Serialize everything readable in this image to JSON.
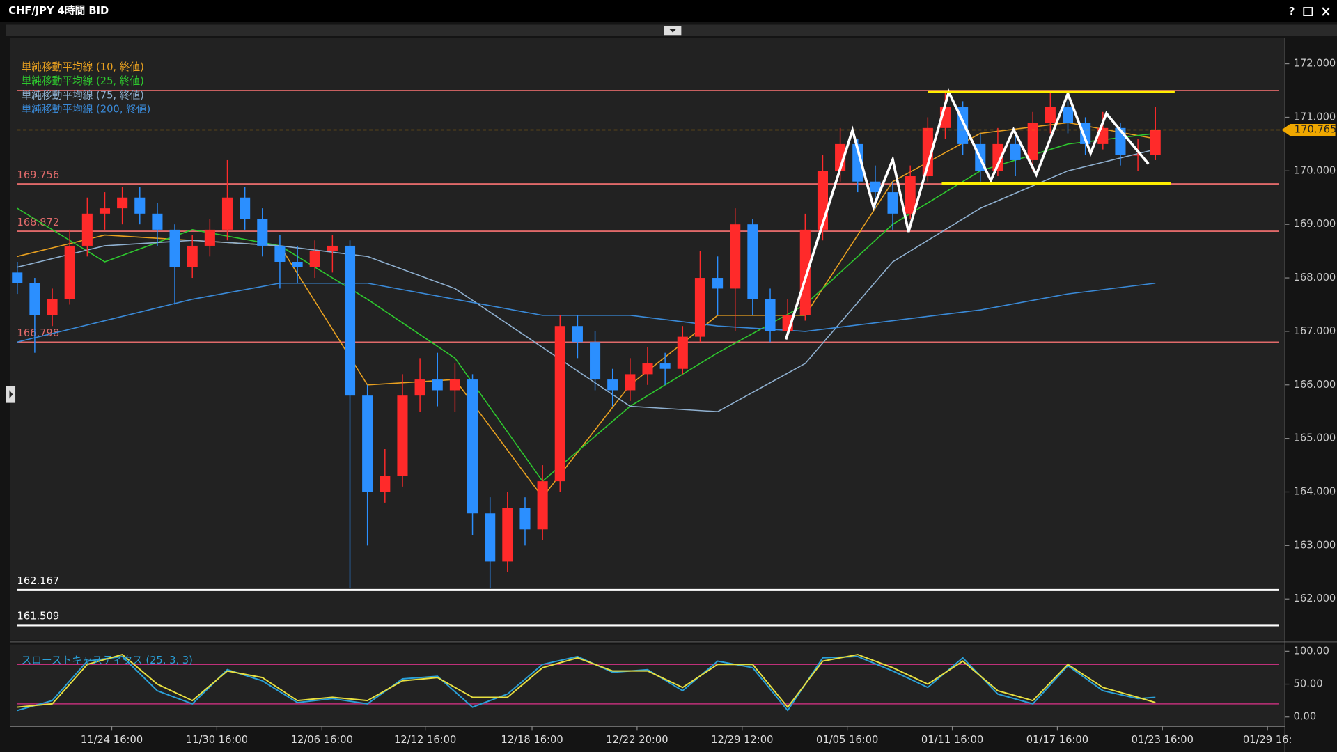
{
  "window": {
    "title": "CHF/JPY 4時間 BID",
    "help": "?"
  },
  "chart_data": [
    {
      "type": "candlestick",
      "ylim": [
        161.23,
        172.49
      ],
      "yticks": [
        {
          "value": 162,
          "label": "162.000"
        },
        {
          "value": 163,
          "label": "163.000"
        },
        {
          "value": 164,
          "label": "164.000"
        },
        {
          "value": 165,
          "label": "165.000"
        },
        {
          "value": 166,
          "label": "166.000"
        },
        {
          "value": 167,
          "label": "167.000"
        },
        {
          "value": 168,
          "label": "168.000"
        },
        {
          "value": 169,
          "label": "169.000"
        },
        {
          "value": 170,
          "label": "170.000"
        },
        {
          "value": 171,
          "label": "171.000"
        },
        {
          "value": 172,
          "label": "172.000"
        }
      ],
      "xlim": [
        -0.4,
        72.4
      ],
      "xticks": [
        {
          "value": 5.4,
          "label": "11/24 16:00"
        },
        {
          "value": 11.4,
          "label": "11/30 16:00"
        },
        {
          "value": 17.4,
          "label": "12/06 16:00"
        },
        {
          "value": 23.3,
          "label": "12/12 16:00"
        },
        {
          "value": 29.4,
          "label": "12/18 16:00"
        },
        {
          "value": 35.4,
          "label": "12/22 20:00"
        },
        {
          "value": 41.4,
          "label": "12/29 12:00"
        },
        {
          "value": 47.4,
          "label": "01/05 16:00"
        },
        {
          "value": 53.4,
          "label": "01/11 16:00"
        },
        {
          "value": 59.4,
          "label": "01/17 16:00"
        },
        {
          "value": 65.4,
          "label": "01/23 16:00"
        },
        {
          "value": 71.4,
          "label": "01/29 16:"
        }
      ],
      "up_color": "#ff2a2a",
      "down_color": "#2b8fff",
      "candles": [
        [
          168.1,
          168.3,
          167.7,
          167.9
        ],
        [
          167.9,
          168.0,
          166.6,
          167.3
        ],
        [
          167.3,
          167.8,
          167.1,
          167.6
        ],
        [
          167.6,
          168.9,
          167.5,
          168.6
        ],
        [
          168.6,
          169.5,
          168.4,
          169.2
        ],
        [
          169.2,
          169.6,
          168.9,
          169.3
        ],
        [
          169.3,
          169.7,
          169.0,
          169.5
        ],
        [
          169.5,
          169.7,
          169.0,
          169.2
        ],
        [
          169.2,
          169.4,
          168.6,
          168.9
        ],
        [
          168.9,
          169.0,
          167.5,
          168.2
        ],
        [
          168.2,
          168.8,
          168.0,
          168.6
        ],
        [
          168.6,
          169.1,
          168.4,
          168.9
        ],
        [
          168.9,
          170.2,
          168.7,
          169.5
        ],
        [
          169.5,
          169.7,
          168.9,
          169.1
        ],
        [
          169.1,
          169.3,
          168.4,
          168.6
        ],
        [
          168.6,
          168.8,
          167.8,
          168.3
        ],
        [
          168.3,
          168.6,
          167.9,
          168.2
        ],
        [
          168.2,
          168.7,
          168.0,
          168.5
        ],
        [
          168.5,
          168.8,
          168.1,
          168.6
        ],
        [
          168.6,
          168.7,
          162.2,
          165.8
        ],
        [
          165.8,
          166.0,
          163.0,
          164.0
        ],
        [
          164.0,
          164.8,
          163.8,
          164.3
        ],
        [
          164.3,
          166.2,
          164.1,
          165.8
        ],
        [
          165.8,
          166.5,
          165.5,
          166.1
        ],
        [
          166.1,
          166.6,
          165.6,
          165.9
        ],
        [
          165.9,
          166.4,
          165.5,
          166.1
        ],
        [
          166.1,
          166.2,
          163.2,
          163.6
        ],
        [
          163.6,
          163.9,
          162.2,
          162.7
        ],
        [
          162.7,
          164.0,
          162.5,
          163.7
        ],
        [
          163.7,
          163.9,
          163.0,
          163.3
        ],
        [
          163.3,
          164.5,
          163.1,
          164.2
        ],
        [
          164.2,
          167.3,
          164.0,
          167.1
        ],
        [
          167.1,
          167.3,
          166.5,
          166.8
        ],
        [
          166.8,
          167.0,
          165.9,
          166.1
        ],
        [
          166.1,
          166.3,
          165.6,
          165.9
        ],
        [
          165.9,
          166.5,
          165.7,
          166.2
        ],
        [
          166.2,
          166.7,
          166.0,
          166.4
        ],
        [
          166.4,
          166.6,
          166.0,
          166.3
        ],
        [
          166.3,
          167.1,
          166.2,
          166.9
        ],
        [
          166.9,
          168.5,
          166.8,
          168.0
        ],
        [
          168.0,
          168.4,
          167.3,
          167.8
        ],
        [
          167.8,
          169.3,
          167.0,
          169.0
        ],
        [
          169.0,
          169.1,
          167.3,
          167.6
        ],
        [
          167.6,
          167.8,
          166.8,
          167.0
        ],
        [
          167.0,
          167.6,
          166.9,
          167.3
        ],
        [
          167.3,
          169.2,
          167.2,
          168.9
        ],
        [
          168.9,
          170.3,
          168.7,
          170.0
        ],
        [
          170.0,
          170.8,
          169.8,
          170.5
        ],
        [
          170.5,
          170.6,
          169.6,
          169.8
        ],
        [
          169.8,
          170.1,
          169.3,
          169.6
        ],
        [
          169.6,
          169.8,
          168.9,
          169.2
        ],
        [
          169.2,
          170.1,
          169.1,
          169.9
        ],
        [
          169.9,
          171.0,
          169.8,
          170.8
        ],
        [
          170.8,
          171.5,
          170.6,
          171.2
        ],
        [
          171.2,
          171.3,
          170.3,
          170.5
        ],
        [
          170.5,
          170.7,
          169.8,
          170.0
        ],
        [
          170.0,
          170.8,
          169.9,
          170.5
        ],
        [
          170.5,
          170.7,
          169.9,
          170.2
        ],
        [
          170.2,
          171.1,
          170.0,
          170.9
        ],
        [
          170.9,
          171.5,
          170.7,
          171.2
        ],
        [
          171.2,
          171.3,
          170.7,
          170.9
        ],
        [
          170.9,
          171.0,
          170.3,
          170.5
        ],
        [
          170.5,
          171.1,
          170.4,
          170.8
        ],
        [
          170.8,
          170.9,
          170.1,
          170.3
        ],
        [
          170.3,
          170.6,
          170.0,
          170.3
        ],
        [
          170.3,
          171.2,
          170.2,
          170.77
        ]
      ],
      "ma_x": [
        0,
        5,
        10,
        15,
        20,
        25,
        30,
        35,
        40,
        45,
        50,
        55,
        60,
        65
      ],
      "series": [
        {
          "name": "単純移動平均線 (10, 終値)",
          "color": "#e8a020",
          "values": [
            168.4,
            168.8,
            168.7,
            168.6,
            166.0,
            166.1,
            163.9,
            166.0,
            167.3,
            167.3,
            169.8,
            170.7,
            170.9,
            170.6
          ]
        },
        {
          "name": "単純移動平均線 (25, 終値)",
          "color": "#2ec82e",
          "values": [
            169.3,
            168.3,
            168.9,
            168.6,
            167.6,
            166.5,
            164.2,
            165.6,
            166.6,
            167.5,
            169.0,
            170.0,
            170.5,
            170.7
          ]
        },
        {
          "name": "単純移動平均線 (75, 終値)",
          "color": "#8fb0d0",
          "values": [
            168.2,
            168.6,
            168.7,
            168.6,
            168.4,
            167.8,
            166.7,
            165.6,
            165.5,
            166.4,
            168.3,
            169.3,
            170.0,
            170.4
          ]
        },
        {
          "name": "単純移動平均線 (200, 終値)",
          "color": "#3a8ad8",
          "values": [
            166.8,
            167.2,
            167.6,
            167.9,
            167.9,
            167.6,
            167.3,
            167.3,
            167.1,
            167.0,
            167.2,
            167.4,
            167.7,
            167.9
          ]
        }
      ],
      "levels": [
        {
          "value": 171.5,
          "color": "#e06a6a",
          "labeled": false
        },
        {
          "value": 169.756,
          "color": "#e06a6a",
          "labeled": true
        },
        {
          "value": 168.872,
          "color": "#e06a6a",
          "labeled": true
        },
        {
          "value": 166.798,
          "color": "#e06a6a",
          "labeled": true
        },
        {
          "value": 162.167,
          "color": "#ffffff",
          "labeled": true
        },
        {
          "value": 161.509,
          "color": "#ffffff",
          "labeled": true
        }
      ],
      "last": 170.765,
      "last_color": "#f0a800",
      "zigzag": {
        "color": "#ffffff",
        "x": [
          43.9,
          47.7,
          48.9,
          50.0,
          50.9,
          53.2,
          55.6,
          56.9,
          58.2,
          60.0,
          61.3,
          62.2,
          64.6
        ],
        "y": [
          166.85,
          170.76,
          169.32,
          170.21,
          168.86,
          171.47,
          169.82,
          170.77,
          169.93,
          171.44,
          170.33,
          171.07,
          170.13
        ]
      },
      "range_lines": {
        "color": "#ffee00",
        "lines": [
          {
            "x": [
              52.0,
              66.1
            ],
            "y": [
              171.48,
              171.48
            ]
          },
          {
            "x": [
              52.8,
              65.9
            ],
            "y": [
              169.76,
              169.76
            ]
          }
        ]
      }
    },
    {
      "type": "line",
      "title": "スローストキャスティクス (25, 3, 3)",
      "ylim": [
        -13,
        110.4
      ],
      "yticks": [
        {
          "value": 0,
          "label": "0.00"
        },
        {
          "value": 50,
          "label": "50.00"
        },
        {
          "value": 100,
          "label": "100.00"
        }
      ],
      "levels": [
        80,
        20
      ],
      "level_color": "#c0307a",
      "x": [
        0,
        2,
        4,
        6,
        8,
        10,
        12,
        14,
        16,
        18,
        20,
        22,
        24,
        26,
        28,
        30,
        32,
        34,
        36,
        38,
        40,
        42,
        44,
        46,
        48,
        50,
        52,
        54,
        56,
        58,
        60,
        62,
        64,
        65
      ],
      "series": [
        {
          "color": "#2aa0d8",
          "values": [
            10,
            25,
            85,
            92,
            40,
            20,
            72,
            55,
            22,
            28,
            20,
            58,
            62,
            15,
            35,
            80,
            92,
            68,
            72,
            40,
            85,
            75,
            10,
            90,
            92,
            70,
            45,
            90,
            35,
            20,
            78,
            40,
            28,
            30
          ]
        },
        {
          "color": "#e8e040",
          "values": [
            15,
            20,
            80,
            95,
            50,
            25,
            70,
            60,
            25,
            30,
            25,
            55,
            60,
            30,
            30,
            75,
            90,
            70,
            70,
            45,
            80,
            80,
            15,
            85,
            95,
            75,
            50,
            85,
            40,
            25,
            80,
            45,
            30,
            22
          ]
        }
      ]
    }
  ]
}
